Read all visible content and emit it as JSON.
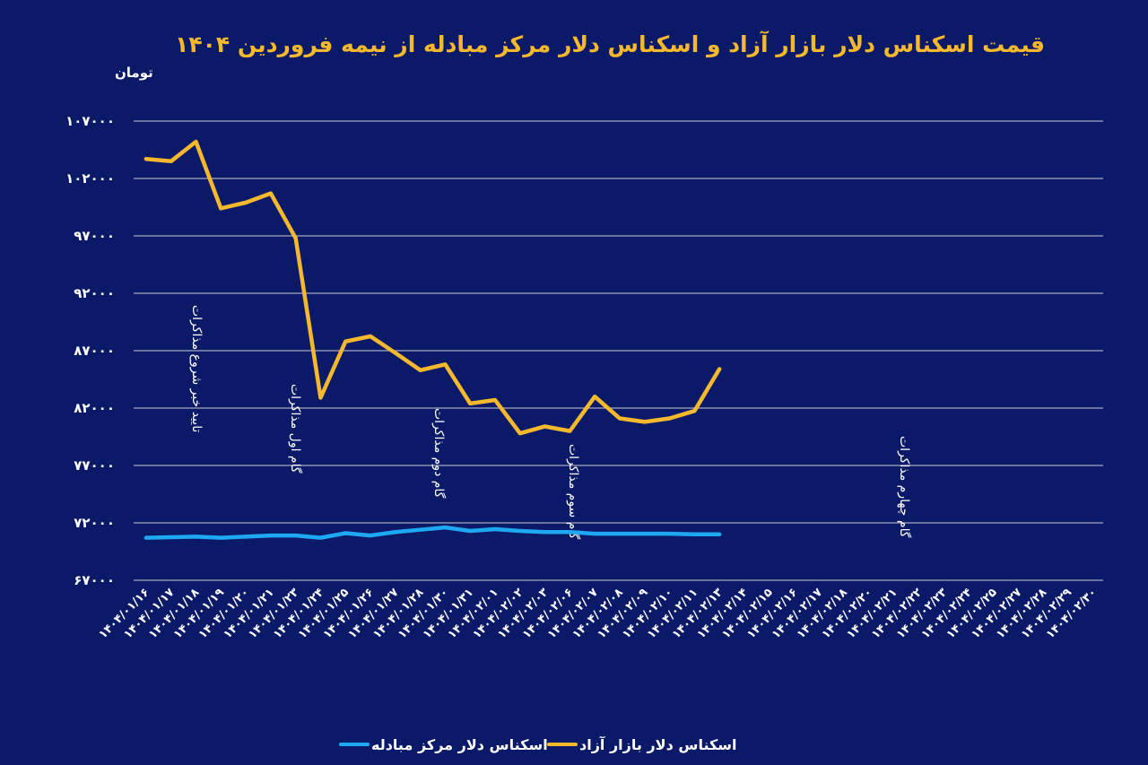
{
  "chart_data": {
    "type": "line",
    "title": "قیمت اسکناس دلار بازار آزاد و اسکناس دلار مرکز مبادله از نیمه فروردین ۱۴۰۴",
    "y_label": "تومان",
    "categories": [
      "۱۴۰۴/۰۱/۱۶",
      "۱۴۰۴/۰۱/۱۷",
      "۱۴۰۴/۰۱/۱۸",
      "۱۴۰۴/۰۱/۱۹",
      "۱۴۰۴/۰۱/۲۰",
      "۱۴۰۴/۰۱/۲۱",
      "۱۴۰۴/۰۱/۲۳",
      "۱۴۰۴/۰۱/۲۴",
      "۱۴۰۴/۰۱/۲۵",
      "۱۴۰۴/۰۱/۲۶",
      "۱۴۰۴/۰۱/۲۷",
      "۱۴۰۴/۰۱/۲۸",
      "۱۴۰۴/۰۱/۳۰",
      "۱۴۰۴/۰۱/۳۱",
      "۱۴۰۴/۰۲/۰۱",
      "۱۴۰۴/۰۲/۰۲",
      "۱۴۰۴/۰۲/۰۳",
      "۱۴۰۴/۰۲/۰۶",
      "۱۴۰۴/۰۲/۰۷",
      "۱۴۰۴/۰۲/۰۸",
      "۱۴۰۴/۰۲/۰۹",
      "۱۴۰۴/۰۲/۱۰",
      "۱۴۰۴/۰۲/۱۱",
      "۱۴۰۴/۰۲/۱۳",
      "۱۴۰۴/۰۲/۱۴",
      "۱۴۰۴/۰۲/۱۵",
      "۱۴۰۴/۰۲/۱۶",
      "۱۴۰۴/۰۲/۱۷",
      "۱۴۰۴/۰۲/۱۸",
      "۱۴۰۴/۰۲/۲۰",
      "۱۴۰۴/۰۲/۲۱",
      "۱۴۰۴/۰۲/۲۲",
      "۱۴۰۴/۰۲/۲۳",
      "۱۴۰۴/۰۲/۲۴",
      "۱۴۰۴/۰۲/۲۵",
      "۱۴۰۴/۰۲/۲۷",
      "۱۴۰۴/۰۲/۲۸",
      "۱۴۰۴/۰۲/۲۹",
      "۱۴۰۴/۰۲/۳۰"
    ],
    "series": [
      {
        "name": "اسکناس دلار مرکز مبادله",
        "color": "#1ea8f2",
        "values": [
          70700,
          70750,
          70800,
          70700,
          70800,
          70900,
          70900,
          70700,
          71100,
          70900,
          71200,
          71400,
          71600,
          71300,
          71450,
          71300,
          71200,
          71200,
          71050,
          71050,
          71050,
          71050,
          71000,
          71000,
          null,
          null,
          null,
          null,
          null,
          null,
          null,
          null,
          null,
          null,
          null,
          null,
          null,
          null,
          null
        ]
      },
      {
        "name": "اسکناس دلار بازار آزاد",
        "color": "#f6b82c",
        "values": [
          103700,
          103500,
          105200,
          99400,
          99900,
          100700,
          96800,
          82900,
          87800,
          88250,
          86800,
          85300,
          85800,
          82400,
          82700,
          79800,
          80400,
          80000,
          83000,
          81100,
          80800,
          81100,
          81750,
          85400,
          null,
          null,
          null,
          null,
          null,
          null,
          null,
          null,
          null,
          null,
          null,
          null,
          null,
          null,
          null
        ]
      }
    ],
    "ylim": [
      67000,
      107000
    ],
    "yticks": [
      {
        "value": 67000,
        "label": "۶۷۰۰۰"
      },
      {
        "value": 72000,
        "label": "۷۲۰۰۰"
      },
      {
        "value": 77000,
        "label": "۷۷۰۰۰"
      },
      {
        "value": 82000,
        "label": "۸۲۰۰۰"
      },
      {
        "value": 87000,
        "label": "۸۷۰۰۰"
      },
      {
        "value": 92000,
        "label": "۹۲۰۰۰"
      },
      {
        "value": 97000,
        "label": "۹۷۰۰۰"
      },
      {
        "value": 102000,
        "label": "۱۰۲۰۰۰"
      },
      {
        "value": 107000,
        "label": "۱۰۷۰۰۰"
      }
    ],
    "grid": true,
    "legend": "bottom",
    "annotations": [
      "تایید خبر شروع مذاکرات",
      "گام اول مذاکرات",
      "گام دوم مذاکرات",
      "گام سوم مذاکرات",
      "گام چهارم مذاکرات"
    ]
  }
}
